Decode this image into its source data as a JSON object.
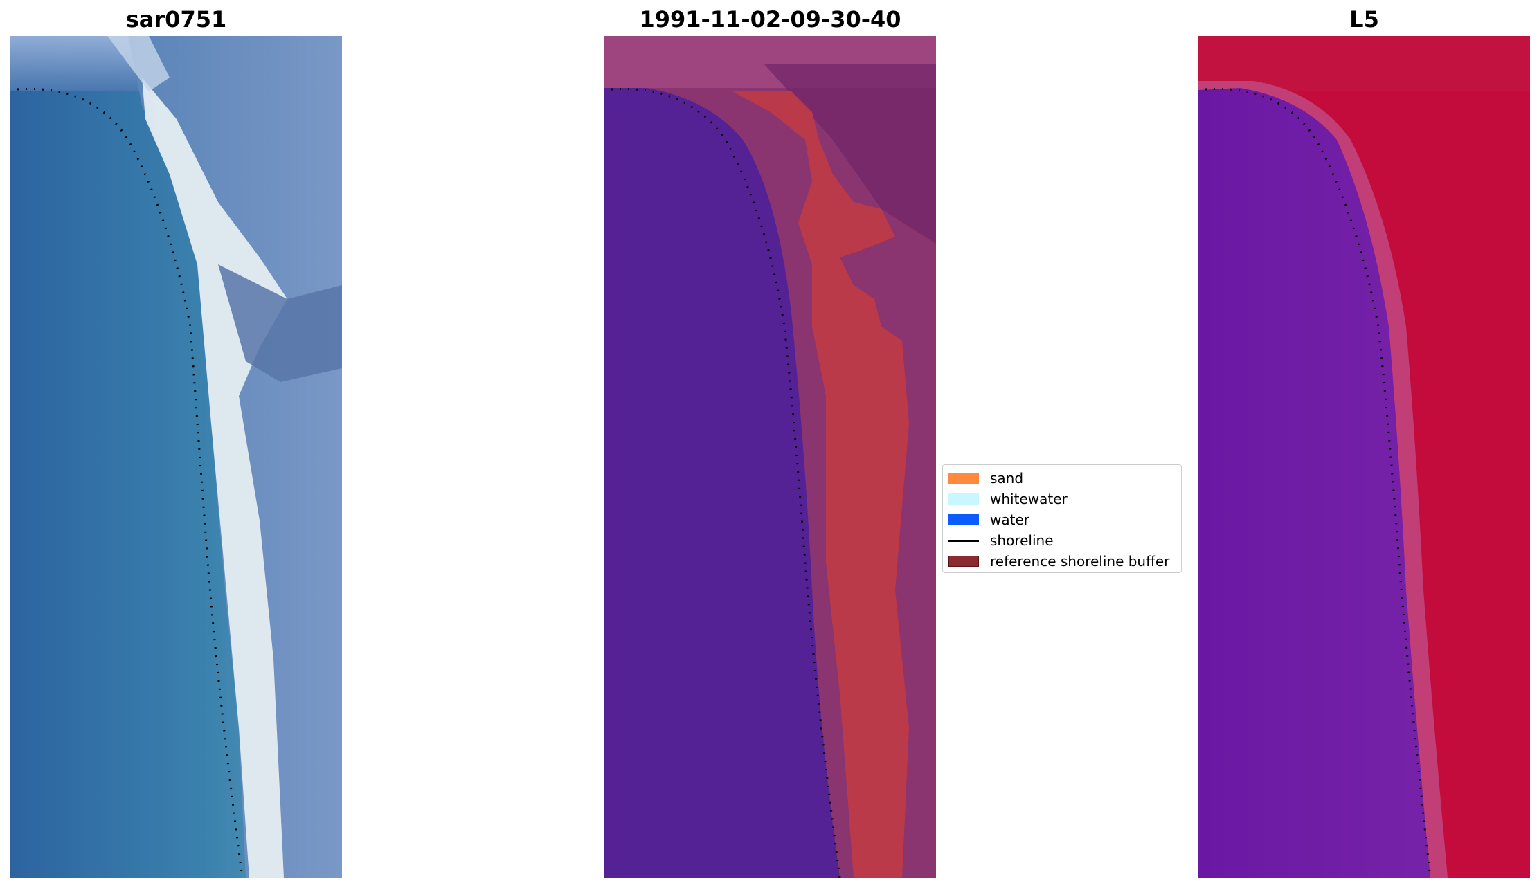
{
  "panels": [
    {
      "title": "sar0751",
      "content": "RGB satellite image with detected shoreline (dotted)"
    },
    {
      "title": "1991-11-02-09-30-40",
      "content": "classified image with reference shoreline buffer"
    },
    {
      "title": "L5",
      "content": "water index image with detected shoreline (dotted)"
    }
  ],
  "legend": {
    "items": [
      {
        "label": "sand",
        "color": "#ff8a3d",
        "kind": "patch"
      },
      {
        "label": "whitewater",
        "color": "#c8f7ff",
        "kind": "patch"
      },
      {
        "label": "water",
        "color": "#0a5cff",
        "kind": "patch"
      },
      {
        "label": "shoreline",
        "color": "#000000",
        "kind": "line"
      },
      {
        "label": "reference shoreline buffer",
        "color": "#8b2a2f",
        "kind": "patch"
      }
    ]
  },
  "colors": {
    "water_rgb": "#2f6fa6",
    "beach_rgb": "#dde9ef",
    "land_rgb": "#4a72a8",
    "classified_water": "#552295",
    "classified_buffer": "#ba3a4a",
    "classified_land": "#8a3470",
    "index_water": "#6514a0",
    "index_land": "#c40c3c"
  }
}
